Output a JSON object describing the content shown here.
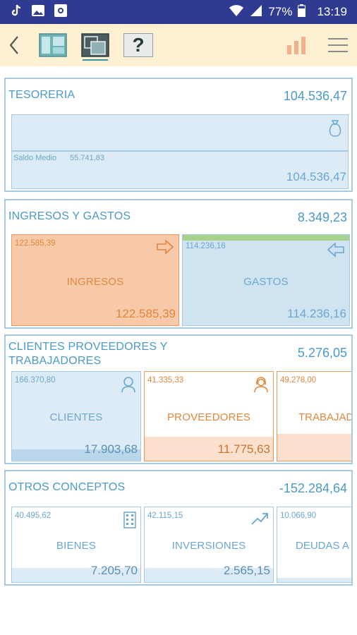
{
  "status": {
    "battery": "77%",
    "time": "13:19"
  },
  "toolbar": {
    "back_icon": "chevron-left-icon",
    "help_label": "?"
  },
  "tesoreria": {
    "title": "TESORERIA",
    "total": "104.536,47",
    "saldo_label": "Saldo Medio",
    "saldo_value": "55.741,83",
    "value": "104.536,47"
  },
  "ingresos_gastos": {
    "title": "INGRESOS Y GASTOS",
    "total": "8.349,23",
    "ingresos": {
      "small": "122.585,39",
      "label": "INGRESOS",
      "value": "122.585,39"
    },
    "gastos": {
      "small": "114.236,16",
      "label": "GASTOS",
      "value": "114.236,16"
    }
  },
  "cpt": {
    "title_line1": "CLIENTES  PROVEEDORES Y",
    "title_line2": "TRABAJADORES",
    "total": "5.276,05",
    "clientes": {
      "small": "166.370,80",
      "label": "CLIENTES",
      "value": "17.903,68"
    },
    "proveedores": {
      "small": "41.335,33",
      "label": "PROVEEDORES",
      "value": "11.775,63"
    },
    "trabajadores": {
      "small": "49.278,00",
      "label": "TRABAJADORES"
    }
  },
  "otros": {
    "title": "OTROS CONCEPTOS",
    "total": "-152.284,64",
    "bienes": {
      "small": "40.495,62",
      "label": "BIENES",
      "value": "7.205,70"
    },
    "inversiones": {
      "small": "42.115,15",
      "label": "INVERSIONES",
      "value": "2.565,15"
    },
    "deudas": {
      "small": "10.066,90",
      "label": "DEUDAS A"
    }
  },
  "colors": {
    "status_bar": "#2f3a92",
    "toolbar_bg": "#fdf0d3",
    "accent_blue": "#4a9ac8",
    "accent_orange": "#e0873d"
  }
}
